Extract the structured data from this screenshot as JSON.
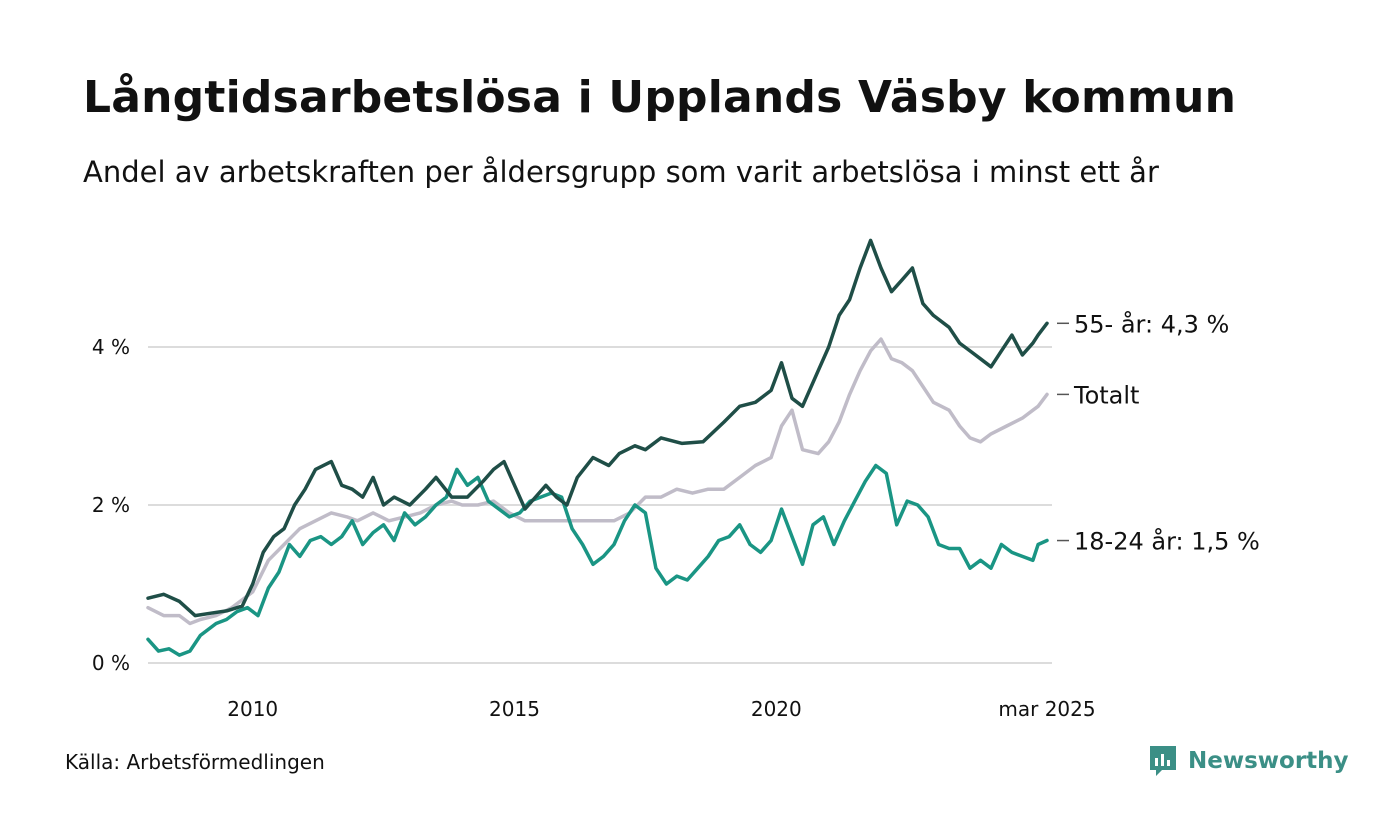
{
  "title": "Långtidsarbetslösa i Upplands Väsby kommun",
  "subtitle": "Andel av arbetskraften per åldersgrupp som varit arbetslösa i minst ett år",
  "source": "Källa: Arbetsförmedlingen",
  "brand": {
    "name": "Newsworthy",
    "icon": "newsworthy-logo-icon",
    "color": "#3b8f86"
  },
  "chart_data": {
    "type": "line",
    "title": "Långtidsarbetslösa i Upplands Väsby kommun",
    "subtitle": "Andel av arbetskraften per åldersgrupp som varit arbetslösa i minst ett år",
    "xlabel": "",
    "ylabel": "",
    "x_range": [
      2008.0,
      2025.17
    ],
    "ylim": [
      0,
      5.5
    ],
    "y_ticks": [
      0,
      2,
      4
    ],
    "y_tick_labels": [
      "0 %",
      "2 %",
      "4 %"
    ],
    "x_ticks": [
      2010,
      2015,
      2020,
      2025.17
    ],
    "x_tick_labels": [
      "2010",
      "2015",
      "2020",
      "mar 2025"
    ],
    "grid": "horizontal",
    "legend": "direct labels at line ends",
    "series": [
      {
        "key": "older",
        "end_label": "55- år: 4,3 %",
        "color": "#1f4e47",
        "points": [
          [
            2008.0,
            0.82
          ],
          [
            2008.3,
            0.87
          ],
          [
            2008.6,
            0.78
          ],
          [
            2008.9,
            0.6
          ],
          [
            2009.2,
            0.63
          ],
          [
            2009.5,
            0.66
          ],
          [
            2009.8,
            0.72
          ],
          [
            2010.0,
            1.0
          ],
          [
            2010.2,
            1.4
          ],
          [
            2010.4,
            1.6
          ],
          [
            2010.6,
            1.7
          ],
          [
            2010.8,
            2.0
          ],
          [
            2011.0,
            2.2
          ],
          [
            2011.2,
            2.45
          ],
          [
            2011.5,
            2.55
          ],
          [
            2011.7,
            2.25
          ],
          [
            2011.9,
            2.2
          ],
          [
            2012.1,
            2.1
          ],
          [
            2012.3,
            2.35
          ],
          [
            2012.5,
            2.0
          ],
          [
            2012.7,
            2.1
          ],
          [
            2013.0,
            2.0
          ],
          [
            2013.3,
            2.2
          ],
          [
            2013.5,
            2.35
          ],
          [
            2013.8,
            2.1
          ],
          [
            2014.1,
            2.1
          ],
          [
            2014.4,
            2.3
          ],
          [
            2014.6,
            2.45
          ],
          [
            2014.8,
            2.55
          ],
          [
            2015.0,
            2.25
          ],
          [
            2015.2,
            1.95
          ],
          [
            2015.4,
            2.1
          ],
          [
            2015.6,
            2.25
          ],
          [
            2015.8,
            2.1
          ],
          [
            2016.0,
            2.0
          ],
          [
            2016.2,
            2.35
          ],
          [
            2016.5,
            2.6
          ],
          [
            2016.8,
            2.5
          ],
          [
            2017.0,
            2.65
          ],
          [
            2017.3,
            2.75
          ],
          [
            2017.5,
            2.7
          ],
          [
            2017.8,
            2.85
          ],
          [
            2018.2,
            2.78
          ],
          [
            2018.6,
            2.8
          ],
          [
            2019.0,
            3.05
          ],
          [
            2019.3,
            3.25
          ],
          [
            2019.6,
            3.3
          ],
          [
            2019.9,
            3.45
          ],
          [
            2020.1,
            3.8
          ],
          [
            2020.3,
            3.35
          ],
          [
            2020.5,
            3.25
          ],
          [
            2020.8,
            3.7
          ],
          [
            2021.0,
            4.0
          ],
          [
            2021.2,
            4.4
          ],
          [
            2021.4,
            4.6
          ],
          [
            2021.6,
            5.0
          ],
          [
            2021.8,
            5.35
          ],
          [
            2022.0,
            5.0
          ],
          [
            2022.2,
            4.7
          ],
          [
            2022.4,
            4.85
          ],
          [
            2022.6,
            5.0
          ],
          [
            2022.8,
            4.55
          ],
          [
            2023.0,
            4.4
          ],
          [
            2023.3,
            4.25
          ],
          [
            2023.5,
            4.05
          ],
          [
            2023.7,
            3.95
          ],
          [
            2023.9,
            3.85
          ],
          [
            2024.1,
            3.75
          ],
          [
            2024.3,
            3.95
          ],
          [
            2024.5,
            4.15
          ],
          [
            2024.7,
            3.9
          ],
          [
            2024.9,
            4.05
          ],
          [
            2025.0,
            4.15
          ],
          [
            2025.17,
            4.3
          ]
        ]
      },
      {
        "key": "total",
        "end_label": "Totalt",
        "color": "#c0bcc8",
        "points": [
          [
            2008.0,
            0.7
          ],
          [
            2008.3,
            0.6
          ],
          [
            2008.6,
            0.6
          ],
          [
            2008.8,
            0.5
          ],
          [
            2009.0,
            0.55
          ],
          [
            2009.3,
            0.6
          ],
          [
            2009.6,
            0.7
          ],
          [
            2010.0,
            0.9
          ],
          [
            2010.3,
            1.3
          ],
          [
            2010.6,
            1.5
          ],
          [
            2010.9,
            1.7
          ],
          [
            2011.2,
            1.8
          ],
          [
            2011.5,
            1.9
          ],
          [
            2011.8,
            1.85
          ],
          [
            2012.0,
            1.8
          ],
          [
            2012.3,
            1.9
          ],
          [
            2012.6,
            1.8
          ],
          [
            2012.9,
            1.85
          ],
          [
            2013.2,
            1.9
          ],
          [
            2013.5,
            2.0
          ],
          [
            2013.8,
            2.05
          ],
          [
            2014.0,
            2.0
          ],
          [
            2014.3,
            2.0
          ],
          [
            2014.6,
            2.05
          ],
          [
            2014.9,
            1.9
          ],
          [
            2015.2,
            1.8
          ],
          [
            2015.5,
            1.8
          ],
          [
            2015.8,
            1.8
          ],
          [
            2016.0,
            1.8
          ],
          [
            2016.3,
            1.8
          ],
          [
            2016.6,
            1.8
          ],
          [
            2016.9,
            1.8
          ],
          [
            2017.2,
            1.9
          ],
          [
            2017.5,
            2.1
          ],
          [
            2017.8,
            2.1
          ],
          [
            2018.1,
            2.2
          ],
          [
            2018.4,
            2.15
          ],
          [
            2018.7,
            2.2
          ],
          [
            2019.0,
            2.2
          ],
          [
            2019.3,
            2.35
          ],
          [
            2019.6,
            2.5
          ],
          [
            2019.9,
            2.6
          ],
          [
            2020.1,
            3.0
          ],
          [
            2020.3,
            3.2
          ],
          [
            2020.5,
            2.7
          ],
          [
            2020.8,
            2.65
          ],
          [
            2021.0,
            2.8
          ],
          [
            2021.2,
            3.05
          ],
          [
            2021.4,
            3.4
          ],
          [
            2021.6,
            3.7
          ],
          [
            2021.8,
            3.95
          ],
          [
            2022.0,
            4.1
          ],
          [
            2022.2,
            3.85
          ],
          [
            2022.4,
            3.8
          ],
          [
            2022.6,
            3.7
          ],
          [
            2022.8,
            3.5
          ],
          [
            2023.0,
            3.3
          ],
          [
            2023.3,
            3.2
          ],
          [
            2023.5,
            3.0
          ],
          [
            2023.7,
            2.85
          ],
          [
            2023.9,
            2.8
          ],
          [
            2024.1,
            2.9
          ],
          [
            2024.4,
            3.0
          ],
          [
            2024.7,
            3.1
          ],
          [
            2024.9,
            3.2
          ],
          [
            2025.0,
            3.25
          ],
          [
            2025.17,
            3.4
          ]
        ]
      },
      {
        "key": "young",
        "end_label": "18-24 år: 1,5 %",
        "color": "#1a9584",
        "points": [
          [
            2008.0,
            0.3
          ],
          [
            2008.2,
            0.15
          ],
          [
            2008.4,
            0.18
          ],
          [
            2008.6,
            0.1
          ],
          [
            2008.8,
            0.15
          ],
          [
            2009.0,
            0.35
          ],
          [
            2009.3,
            0.5
          ],
          [
            2009.5,
            0.55
          ],
          [
            2009.7,
            0.65
          ],
          [
            2009.9,
            0.7
          ],
          [
            2010.1,
            0.6
          ],
          [
            2010.3,
            0.95
          ],
          [
            2010.5,
            1.15
          ],
          [
            2010.7,
            1.5
          ],
          [
            2010.9,
            1.35
          ],
          [
            2011.1,
            1.55
          ],
          [
            2011.3,
            1.6
          ],
          [
            2011.5,
            1.5
          ],
          [
            2011.7,
            1.6
          ],
          [
            2011.9,
            1.8
          ],
          [
            2012.1,
            1.5
          ],
          [
            2012.3,
            1.65
          ],
          [
            2012.5,
            1.75
          ],
          [
            2012.7,
            1.55
          ],
          [
            2012.9,
            1.9
          ],
          [
            2013.1,
            1.75
          ],
          [
            2013.3,
            1.85
          ],
          [
            2013.5,
            2.0
          ],
          [
            2013.7,
            2.1
          ],
          [
            2013.9,
            2.45
          ],
          [
            2014.1,
            2.25
          ],
          [
            2014.3,
            2.35
          ],
          [
            2014.5,
            2.05
          ],
          [
            2014.7,
            1.95
          ],
          [
            2014.9,
            1.85
          ],
          [
            2015.1,
            1.9
          ],
          [
            2015.3,
            2.05
          ],
          [
            2015.5,
            2.1
          ],
          [
            2015.7,
            2.15
          ],
          [
            2015.9,
            2.1
          ],
          [
            2016.1,
            1.7
          ],
          [
            2016.3,
            1.5
          ],
          [
            2016.5,
            1.25
          ],
          [
            2016.7,
            1.35
          ],
          [
            2016.9,
            1.5
          ],
          [
            2017.1,
            1.8
          ],
          [
            2017.3,
            2.0
          ],
          [
            2017.5,
            1.9
          ],
          [
            2017.7,
            1.2
          ],
          [
            2017.9,
            1.0
          ],
          [
            2018.1,
            1.1
          ],
          [
            2018.3,
            1.05
          ],
          [
            2018.5,
            1.2
          ],
          [
            2018.7,
            1.35
          ],
          [
            2018.9,
            1.55
          ],
          [
            2019.1,
            1.6
          ],
          [
            2019.3,
            1.75
          ],
          [
            2019.5,
            1.5
          ],
          [
            2019.7,
            1.4
          ],
          [
            2019.9,
            1.55
          ],
          [
            2020.1,
            1.95
          ],
          [
            2020.3,
            1.6
          ],
          [
            2020.5,
            1.25
          ],
          [
            2020.7,
            1.75
          ],
          [
            2020.9,
            1.85
          ],
          [
            2021.1,
            1.5
          ],
          [
            2021.3,
            1.8
          ],
          [
            2021.5,
            2.05
          ],
          [
            2021.7,
            2.3
          ],
          [
            2021.9,
            2.5
          ],
          [
            2022.1,
            2.4
          ],
          [
            2022.3,
            1.75
          ],
          [
            2022.5,
            2.05
          ],
          [
            2022.7,
            2.0
          ],
          [
            2022.9,
            1.85
          ],
          [
            2023.1,
            1.5
          ],
          [
            2023.3,
            1.45
          ],
          [
            2023.5,
            1.45
          ],
          [
            2023.7,
            1.2
          ],
          [
            2023.9,
            1.3
          ],
          [
            2024.1,
            1.2
          ],
          [
            2024.3,
            1.5
          ],
          [
            2024.5,
            1.4
          ],
          [
            2024.7,
            1.35
          ],
          [
            2024.9,
            1.3
          ],
          [
            2025.0,
            1.5
          ],
          [
            2025.17,
            1.55
          ]
        ]
      }
    ]
  }
}
